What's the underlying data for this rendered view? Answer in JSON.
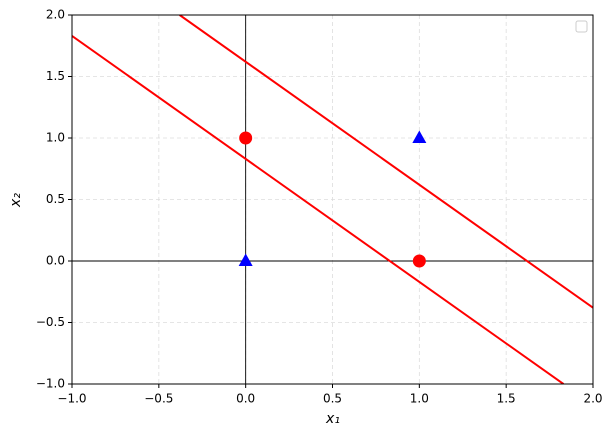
{
  "chart_data": {
    "type": "scatter",
    "xlabel": "x₁",
    "ylabel": "x₂",
    "xlim": [
      -1,
      2
    ],
    "ylim": [
      -1,
      2
    ],
    "xticks": [
      {
        "value": -1,
        "label": "−1.0"
      },
      {
        "value": -0.5,
        "label": "−0.5"
      },
      {
        "value": 0,
        "label": "0.0"
      },
      0.5,
      {
        "value": 1,
        "label": "1.0"
      },
      1.5,
      {
        "value": 2,
        "label": "2.0"
      }
    ],
    "yticks": [
      {
        "value": -1,
        "label": "−1.0"
      },
      {
        "value": -0.5,
        "label": "−0.5"
      },
      {
        "value": 0,
        "label": "0.0"
      },
      0.5,
      {
        "value": 1,
        "label": "1.0"
      },
      1.5,
      {
        "value": 2,
        "label": "2.0"
      }
    ],
    "grid": true,
    "zero_axes": true,
    "legend": "upper right",
    "series": [
      {
        "type": "line",
        "color": "#ff0000",
        "x": [
          -1,
          1.83
        ],
        "values": [
          1.83,
          -1
        ]
      },
      {
        "type": "line",
        "color": "#ff0000",
        "x": [
          -0.38,
          2
        ],
        "values": [
          2,
          -0.38
        ]
      },
      {
        "type": "scatter",
        "marker": "circle",
        "color": "#ff0000",
        "x": [
          0,
          1
        ],
        "values": [
          1,
          0
        ]
      },
      {
        "type": "scatter",
        "marker": "triangle",
        "color": "#0000ff",
        "x": [
          0,
          1
        ],
        "values": [
          0,
          1
        ]
      }
    ]
  }
}
